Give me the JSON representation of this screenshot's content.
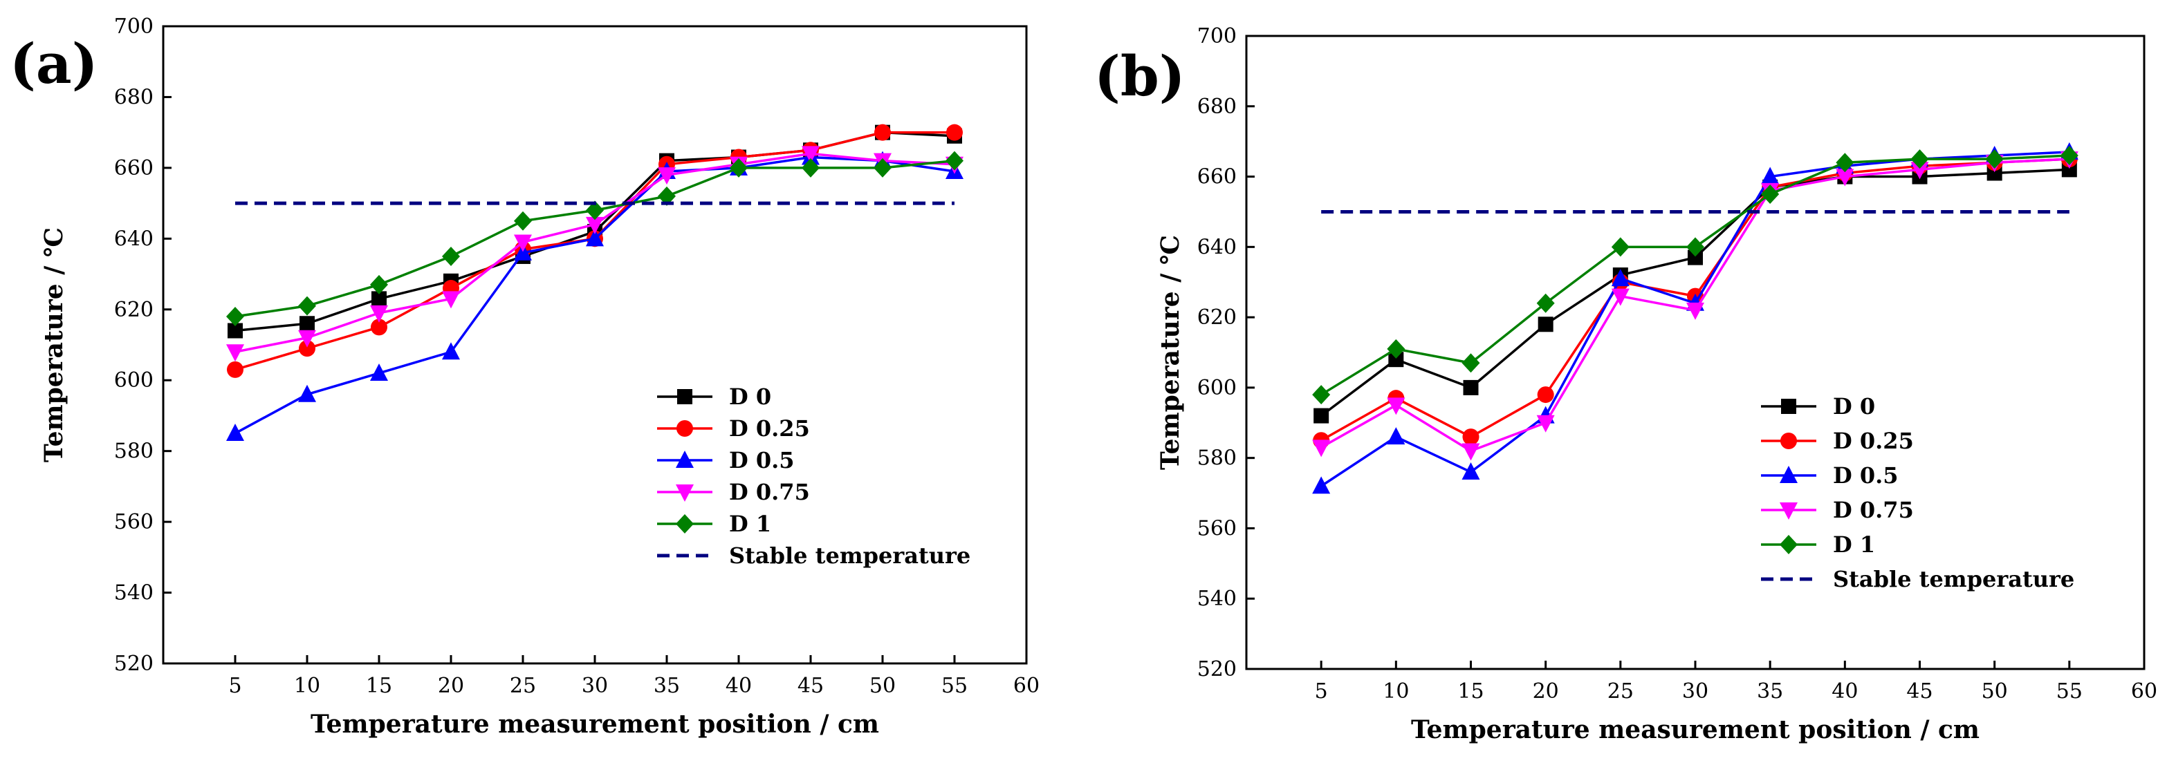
{
  "chart_data": [
    {
      "type": "line",
      "panel_label": "(a)",
      "xlabel": "Temperature measurement position / cm",
      "ylabel": "Temperature  / ℃",
      "xlim": [
        0,
        60
      ],
      "ylim": [
        520,
        700
      ],
      "xticks": [
        5,
        10,
        15,
        20,
        25,
        30,
        35,
        40,
        45,
        50,
        55,
        60
      ],
      "yticks": [
        520,
        540,
        560,
        580,
        600,
        620,
        640,
        660,
        680,
        700
      ],
      "grid": false,
      "legend_position": "bottom-right",
      "x": [
        5,
        10,
        15,
        20,
        25,
        30,
        35,
        40,
        45,
        50,
        55
      ],
      "series": [
        {
          "name": "D 0",
          "color": "#000000",
          "marker": "square",
          "values": [
            614,
            616,
            623,
            628,
            635,
            642,
            662,
            663,
            665,
            670,
            669
          ]
        },
        {
          "name": "D 0.25",
          "color": "#ff0000",
          "marker": "circle",
          "values": [
            603,
            609,
            615,
            626,
            637,
            640,
            661,
            663,
            665,
            670,
            670
          ]
        },
        {
          "name": "D 0.5",
          "color": "#0000ff",
          "marker": "triangle-up",
          "values": [
            585,
            596,
            602,
            608,
            636,
            640,
            659,
            660,
            663,
            662,
            659
          ]
        },
        {
          "name": "D 0.75",
          "color": "#ff00ff",
          "marker": "triangle-down",
          "values": [
            608,
            612,
            619,
            623,
            639,
            644,
            658,
            661,
            664,
            662,
            661
          ]
        },
        {
          "name": "D 1",
          "color": "#008000",
          "marker": "diamond",
          "values": [
            618,
            621,
            627,
            635,
            645,
            648,
            652,
            660,
            660,
            660,
            662
          ]
        },
        {
          "name": "Stable temperature",
          "color": "#000080",
          "marker": "none",
          "dashed": true,
          "values": [
            650,
            650,
            650,
            650,
            650,
            650,
            650,
            650,
            650,
            650,
            650
          ]
        }
      ]
    },
    {
      "type": "line",
      "panel_label": "(b)",
      "xlabel": "Temperature measurement position / cm",
      "ylabel": "Temperature  / ℃",
      "xlim": [
        0,
        60
      ],
      "ylim": [
        520,
        700
      ],
      "xticks": [
        5,
        10,
        15,
        20,
        25,
        30,
        35,
        40,
        45,
        50,
        55,
        60
      ],
      "yticks": [
        520,
        540,
        560,
        580,
        600,
        620,
        640,
        660,
        680,
        700
      ],
      "grid": false,
      "legend_position": "bottom-right",
      "x": [
        5,
        10,
        15,
        20,
        25,
        30,
        35,
        40,
        45,
        50,
        55
      ],
      "series": [
        {
          "name": "D 0",
          "color": "#000000",
          "marker": "square",
          "values": [
            592,
            608,
            600,
            618,
            632,
            637,
            657,
            660,
            660,
            661,
            662
          ]
        },
        {
          "name": "D 0.25",
          "color": "#ff0000",
          "marker": "circle",
          "values": [
            585,
            597,
            586,
            598,
            630,
            626,
            657,
            661,
            663,
            664,
            665
          ]
        },
        {
          "name": "D 0.5",
          "color": "#0000ff",
          "marker": "triangle-up",
          "values": [
            572,
            586,
            576,
            592,
            631,
            624,
            660,
            663,
            665,
            666,
            667
          ]
        },
        {
          "name": "D 0.75",
          "color": "#ff00ff",
          "marker": "triangle-down",
          "values": [
            583,
            595,
            582,
            590,
            626,
            622,
            656,
            660,
            662,
            664,
            665
          ]
        },
        {
          "name": "D 1",
          "color": "#008000",
          "marker": "diamond",
          "values": [
            598,
            611,
            607,
            624,
            640,
            640,
            655,
            664,
            665,
            665,
            666
          ]
        },
        {
          "name": "Stable temperature",
          "color": "#000080",
          "marker": "none",
          "dashed": true,
          "values": [
            650,
            650,
            650,
            650,
            650,
            650,
            650,
            650,
            650,
            650,
            650
          ]
        }
      ]
    }
  ]
}
